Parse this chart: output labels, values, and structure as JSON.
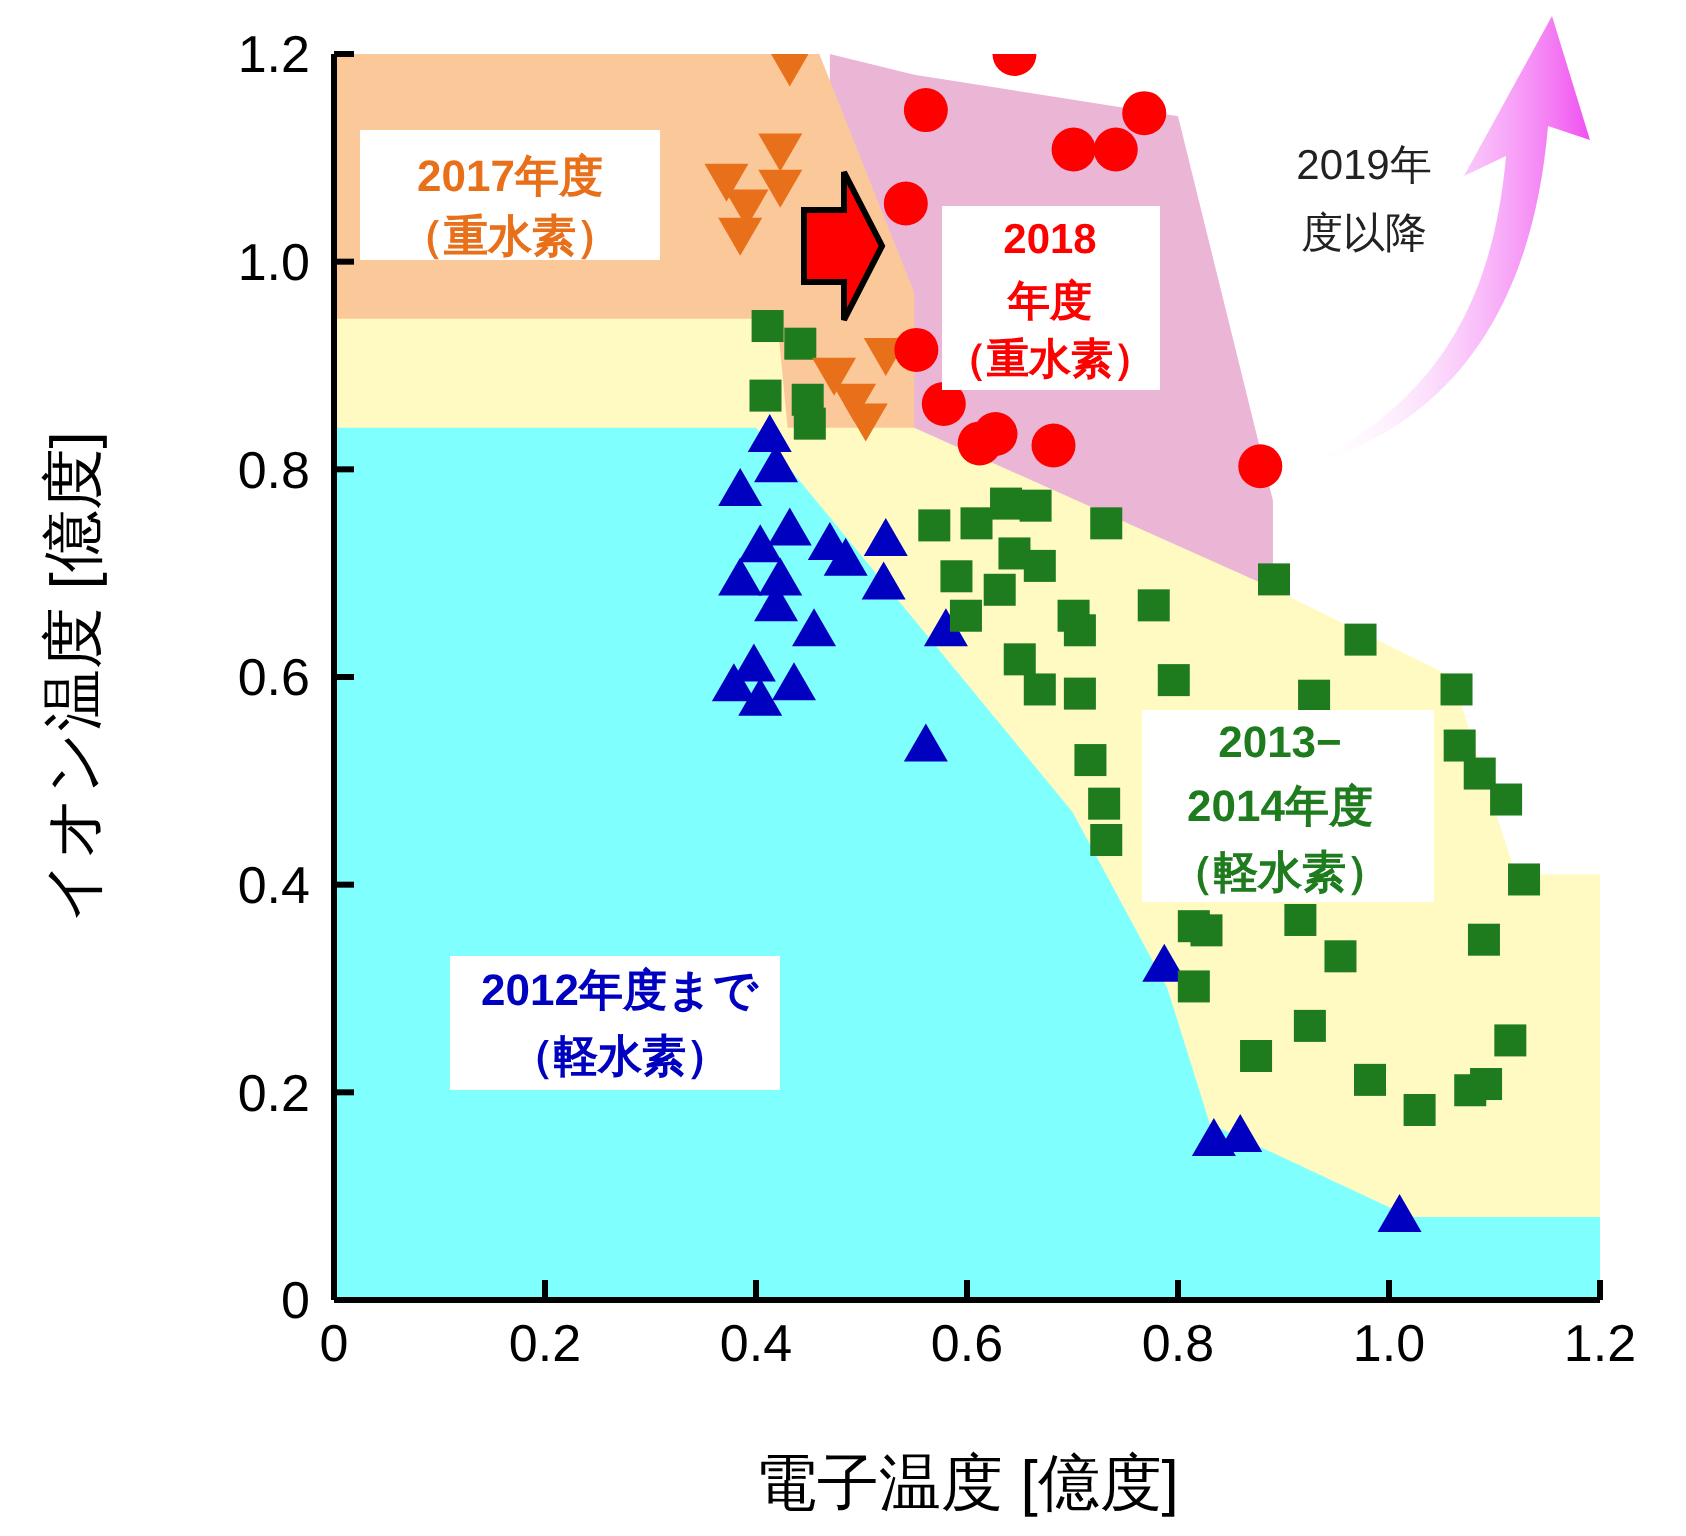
{
  "chart_data": {
    "type": "scatter",
    "xlabel": "電子温度 [億度]",
    "ylabel": "イオン温度 [億度]",
    "xlim": [
      0,
      1.2
    ],
    "ylim": [
      0,
      1.2
    ],
    "xticks": [
      0,
      0.2,
      0.4,
      0.6,
      0.8,
      {
        "value": 1,
        "label": "1.0"
      },
      1.2
    ],
    "yticks": [
      0,
      0.2,
      0.4,
      0.6,
      0.8,
      {
        "value": 1,
        "label": "1.0"
      },
      1.2
    ],
    "annotations": [
      "2019年度以降"
    ],
    "series": [
      {
        "type": "area",
        "color": "#ebb5d6",
        "x": [
          0.47,
          0.55,
          0.8,
          0.89,
          0.89
        ],
        "values": [
          1.2,
          1.18,
          1.14,
          0.77,
          0.7
        ]
      },
      {
        "type": "area",
        "color": "#fbc899",
        "x": [
          0,
          0.46,
          0.55,
          0.55
        ],
        "values": [
          1.2,
          1.2,
          0.97,
          0.84
        ]
      },
      {
        "type": "area",
        "color": "#fffac2",
        "x": [
          0,
          0.42,
          0.43,
          0.55,
          0.88,
          1.06,
          1.12,
          1.2
        ],
        "values": [
          0.945,
          0.945,
          0.84,
          0.84,
          0.69,
          0.6,
          0.41,
          0.41
        ]
      },
      {
        "type": "area",
        "color": "#80ffff",
        "x": [
          0,
          0.4,
          0.7,
          0.79,
          0.83,
          1.02,
          1.2
        ],
        "values": [
          0.84,
          0.84,
          0.47,
          0.3,
          0.17,
          0.08,
          0.08
        ]
      },
      {
        "name": "2012年度まで（軽水素）",
        "color": "#0000c0",
        "marker": "triangle",
        "x": [
          0.413,
          0.419,
          0.385,
          0.432,
          0.404,
          0.385,
          0.423,
          0.47,
          0.485,
          0.523,
          0.521,
          0.419,
          0.455,
          0.398,
          0.379,
          0.436,
          0.404,
          0.58,
          0.561,
          0.787,
          0.834,
          0.859,
          1.01
        ],
        "values": [
          0.832,
          0.803,
          0.78,
          0.742,
          0.726,
          0.694,
          0.694,
          0.728,
          0.713,
          0.732,
          0.69,
          0.669,
          0.645,
          0.611,
          0.592,
          0.593,
          0.578,
          0.645,
          0.534,
          0.322,
          0.154,
          0.158,
          0.081
        ]
      },
      {
        "name": "2013−2014年度（軽水素）",
        "color": "#1e7b1e",
        "marker": "square",
        "x": [
          0.411,
          0.442,
          0.409,
          0.449,
          0.451,
          0.569,
          0.609,
          0.637,
          0.665,
          0.732,
          0.59,
          0.645,
          0.669,
          0.631,
          0.599,
          0.701,
          0.707,
          0.777,
          0.891,
          0.65,
          0.669,
          0.707,
          0.796,
          0.929,
          0.973,
          1.064,
          1.067,
          1.086,
          1.111,
          0.717,
          0.73,
          0.732,
          1.128,
          0.815,
          0.916,
          0.954,
          1.09,
          0.815,
          0.874,
          0.925,
          0.982,
          1.029,
          1.077,
          1.092,
          1.115,
          0.827
        ],
        "values": [
          0.938,
          0.921,
          0.871,
          0.867,
          0.844,
          0.746,
          0.748,
          0.767,
          0.765,
          0.748,
          0.697,
          0.719,
          0.707,
          0.684,
          0.659,
          0.659,
          0.645,
          0.669,
          0.694,
          0.617,
          0.588,
          0.584,
          0.597,
          0.582,
          0.636,
          0.588,
          0.534,
          0.507,
          0.482,
          0.52,
          0.478,
          0.443,
          0.405,
          0.36,
          0.366,
          0.331,
          0.347,
          0.302,
          0.235,
          0.264,
          0.212,
          0.183,
          0.202,
          0.208,
          0.25,
          0.356
        ]
      },
      {
        "name": "2017年度（重水素）",
        "color": "#e8701a",
        "marker": "triangle-down",
        "x": [
          0.432,
          0.423,
          0.372,
          0.391,
          0.423,
          0.385,
          0.474,
          0.523,
          0.504,
          0.493
        ],
        "values": [
          1.19,
          1.108,
          1.079,
          1.054,
          1.073,
          1.027,
          0.892,
          0.911,
          0.848,
          0.867
        ]
      },
      {
        "name": "2018年度（重水素）",
        "color": "#ff0000",
        "marker": "circle",
        "x": [
          0.645,
          0.561,
          0.701,
          0.741,
          0.768,
          0.542,
          0.552,
          0.578,
          0.612,
          0.627,
          0.682,
          0.878
        ],
        "values": [
          1.2,
          1.146,
          1.108,
          1.108,
          1.143,
          1.056,
          0.915,
          0.863,
          0.825,
          0.834,
          0.823,
          0.803
        ]
      }
    ]
  }
}
